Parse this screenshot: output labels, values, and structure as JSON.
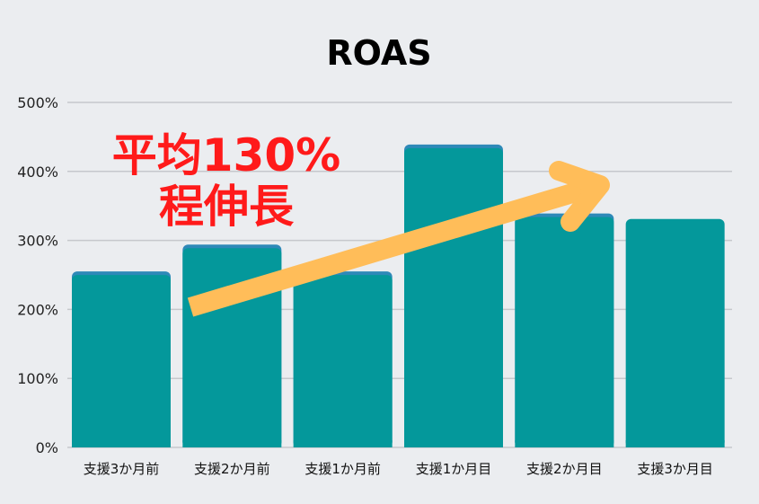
{
  "chart_data": {
    "type": "bar",
    "title": "ROAS",
    "xlabel": "",
    "ylabel": "",
    "ylim": [
      0,
      500
    ],
    "yticks": [
      "0%",
      "100%",
      "200%",
      "300%",
      "400%",
      "500%"
    ],
    "grid": true,
    "categories": [
      "支援3か月前",
      "支援2か月前",
      "支援1か月前",
      "支援1か月目",
      "支援2か月目",
      "支援3か月目"
    ],
    "values": [
      255,
      294,
      255,
      439,
      339,
      331
    ],
    "annotation": {
      "line1": "平均130%",
      "line2": "程伸長"
    },
    "colors": {
      "bar": "#04989b",
      "bar_top": "#2e89b8",
      "arrow": "#ffbd59",
      "annotation": "#ff1a1a",
      "grid": "#c6c8cc"
    }
  }
}
